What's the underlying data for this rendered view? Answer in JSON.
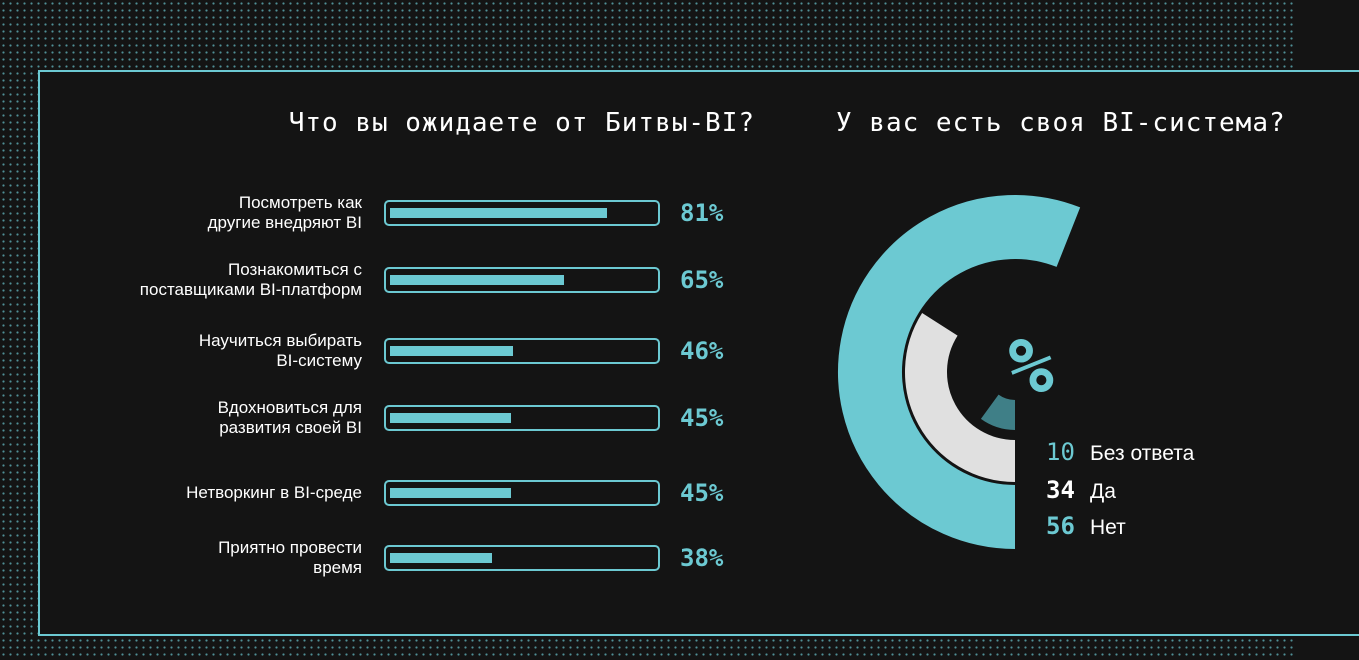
{
  "left_title": "Что вы ожидаете от Битвы-BI?",
  "right_title": "У вас есть своя BI-система?",
  "center_symbol": "%",
  "colors": {
    "accent": "#6cc9d2",
    "light_gray": "#e0e0e0",
    "dark_teal": "#3f7f87",
    "background": "#141414"
  },
  "chart_data": [
    {
      "type": "bar",
      "title": "Что вы ожидаете от Битвы-BI?",
      "orientation": "horizontal",
      "unit": "%",
      "categories": [
        "Посмотреть как другие внедряют BI",
        "Познакомиться с поставщиками BI-платформ",
        "Научиться выбирать BI-систему",
        "Вдохновиться для развития своей BI",
        "Нетворкинг в BI-среде",
        "Приятно провести время"
      ],
      "label_lines": [
        [
          "Посмотреть как",
          "другие внедряют BI"
        ],
        [
          "Познакомиться с",
          "поставщиками BI-платформ"
        ],
        [
          "Научиться выбирать",
          "BI-систему"
        ],
        [
          "Вдохновиться для",
          "развития своей BI"
        ],
        [
          "Нетворкинг в BI-среде"
        ],
        [
          "Приятно провести",
          "время"
        ]
      ],
      "values": [
        81,
        65,
        46,
        45,
        45,
        38
      ],
      "value_labels": [
        "81%",
        "65%",
        "46%",
        "45%",
        "45%",
        "38%"
      ],
      "xlim": [
        0,
        100
      ]
    },
    {
      "type": "pie",
      "title": "У вас есть своя BI-система?",
      "unit": "%",
      "categories": [
        "Без ответа",
        "Да",
        "Нет"
      ],
      "values": [
        10,
        34,
        56
      ],
      "value_labels": [
        "10",
        "34",
        "56"
      ],
      "colors": [
        "#3f7f87",
        "#e0e0e0",
        "#6cc9d2"
      ]
    }
  ]
}
